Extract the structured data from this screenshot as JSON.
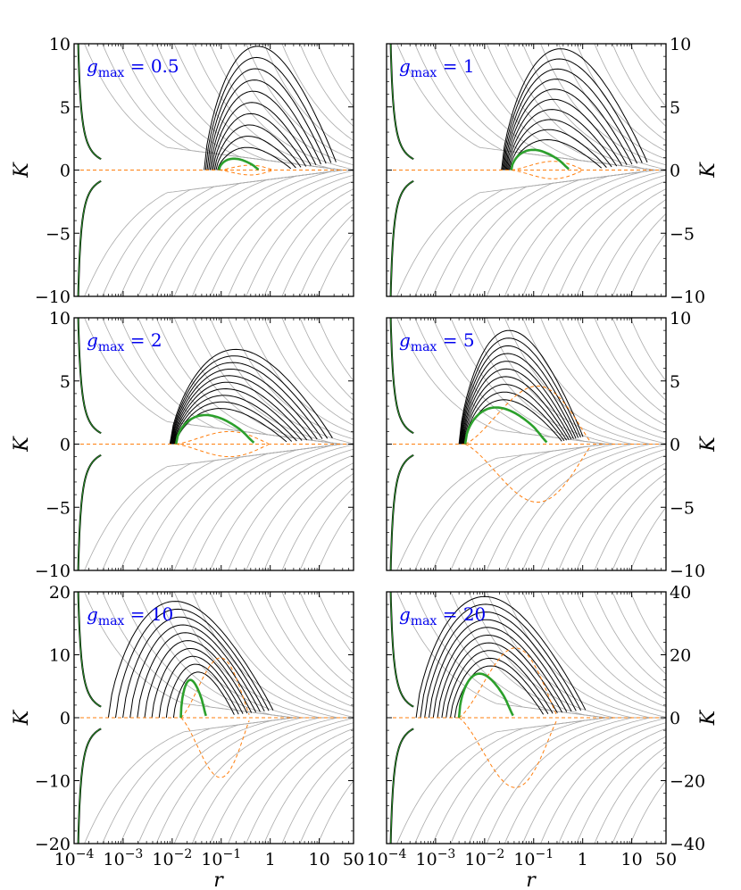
{
  "chart_data": [
    {
      "type": "line",
      "panel_label": {
        "var": "g",
        "sub": "max",
        "value": "0.5"
      },
      "xscale": "log",
      "xlim": [
        0.0001,
        50
      ],
      "x_ticks": [
        "10-4",
        "10-3",
        "10-2",
        "10-1",
        "1",
        "10",
        "50"
      ],
      "show_x_ticklabels": false,
      "ylabel": "K",
      "ylabel_side": "left",
      "ylim": [
        -10,
        10
      ],
      "y_ticks": [
        10,
        5,
        0,
        -5,
        -10
      ],
      "core": {
        "center_r": 0.6,
        "upper_K": 0.9,
        "lower_K": -0.85,
        "tip_r": 0.09
      },
      "envelope": {
        "tip_r": 0.045,
        "peak_r": 20,
        "peak_K": 9.8,
        "end_r": 30
      },
      "series": [
        {
          "style": "black solid",
          "color": "#000000"
        },
        {
          "style": "grey solid",
          "color": "#aaaaaa"
        },
        {
          "style": "green separatrix",
          "color": "#2ca02c"
        },
        {
          "style": "orange dashed",
          "color": "#ff7f0e"
        }
      ]
    },
    {
      "type": "line",
      "panel_label": {
        "var": "g",
        "sub": "max",
        "value": "1"
      },
      "xscale": "log",
      "xlim": [
        0.0001,
        50
      ],
      "x_ticks": [
        "10-4",
        "10-3",
        "10-2",
        "10-1",
        "1",
        "10",
        "50"
      ],
      "show_x_ticklabels": false,
      "ylabel": "K",
      "ylabel_side": "right",
      "ylim": [
        -10,
        10
      ],
      "y_ticks": [
        10,
        5,
        0,
        -5,
        -10
      ],
      "core": {
        "center_r": 0.55,
        "upper_K": 1.6,
        "lower_K": -1.5,
        "tip_r": 0.035
      },
      "envelope": {
        "tip_r": 0.022,
        "peak_r": 18,
        "peak_K": 9.6,
        "end_r": 30
      },
      "series": [
        {
          "style": "black solid",
          "color": "#000000"
        },
        {
          "style": "grey solid",
          "color": "#aaaaaa"
        },
        {
          "style": "green separatrix",
          "color": "#2ca02c"
        },
        {
          "style": "orange dashed",
          "color": "#ff7f0e"
        }
      ]
    },
    {
      "type": "line",
      "panel_label": {
        "var": "g",
        "sub": "max",
        "value": "2"
      },
      "xscale": "log",
      "xlim": [
        0.0001,
        50
      ],
      "x_ticks": [
        "10-4",
        "10-3",
        "10-2",
        "10-1",
        "1",
        "10",
        "50"
      ],
      "show_x_ticklabels": false,
      "ylabel": "K",
      "ylabel_side": "left",
      "ylim": [
        -10,
        10
      ],
      "y_ticks": [
        10,
        5,
        0,
        -5,
        -10
      ],
      "core": {
        "center_r": 0.5,
        "upper_K": 2.3,
        "lower_K": -2.3,
        "tip_r": 0.012
      },
      "envelope": {
        "tip_r": 0.009,
        "peak_r": 16,
        "peak_K": 7.5,
        "end_r": 28
      },
      "series": [
        {
          "style": "black solid",
          "color": "#000000"
        },
        {
          "style": "grey solid",
          "color": "#aaaaaa"
        },
        {
          "style": "green separatrix",
          "color": "#2ca02c"
        },
        {
          "style": "orange dashed",
          "color": "#ff7f0e"
        }
      ]
    },
    {
      "type": "line",
      "panel_label": {
        "var": "g",
        "sub": "max",
        "value": "5"
      },
      "xscale": "log",
      "xlim": [
        0.0001,
        50
      ],
      "x_ticks": [
        "10-4",
        "10-3",
        "10-2",
        "10-1",
        "1",
        "10",
        "50"
      ],
      "show_x_ticklabels": false,
      "ylabel": "K",
      "ylabel_side": "right",
      "ylim": [
        -10,
        10
      ],
      "y_ticks": [
        10,
        5,
        0,
        -5,
        -10
      ],
      "core": {
        "center_r": 0.2,
        "upper_K": 2.9,
        "lower_K": -2.9,
        "tip_r": 0.004
      },
      "envelope": {
        "tip_r": 0.003,
        "peak_r": 0.35,
        "peak_K": 9.0,
        "end_r": 3
      },
      "series": [
        {
          "style": "black solid",
          "color": "#000000"
        },
        {
          "style": "grey solid",
          "color": "#aaaaaa"
        },
        {
          "style": "green separatrix",
          "color": "#2ca02c"
        },
        {
          "style": "orange dashed",
          "color": "#ff7f0e"
        }
      ]
    },
    {
      "type": "line",
      "panel_label": {
        "var": "g",
        "sub": "max",
        "value": "10"
      },
      "xscale": "log",
      "xlim": [
        0.0001,
        50
      ],
      "x_ticks": [
        "10-4",
        "10-3",
        "10-2",
        "10-1",
        "1",
        "10",
        "50"
      ],
      "show_x_ticklabels": true,
      "xlabel": "r",
      "ylabel": "K",
      "ylabel_side": "left",
      "ylim": [
        -20,
        20
      ],
      "y_ticks": [
        20,
        10,
        0,
        -10,
        -20
      ],
      "core": {
        "center_r": 0.05,
        "upper_K": 6.0,
        "lower_K": -6.0,
        "tip_r": 0.015
      },
      "envelope": {
        "tip_r": 0.0005,
        "peak_r": 0.5,
        "peak_K": 18.5,
        "end_r": 3
      },
      "series": [
        {
          "style": "black solid",
          "color": "#000000"
        },
        {
          "style": "grey solid",
          "color": "#aaaaaa"
        },
        {
          "style": "green separatrix",
          "color": "#2ca02c"
        },
        {
          "style": "orange dashed",
          "color": "#ff7f0e"
        }
      ]
    },
    {
      "type": "line",
      "panel_label": {
        "var": "g",
        "sub": "max",
        "value": "20"
      },
      "xscale": "log",
      "xlim": [
        0.0001,
        50
      ],
      "x_ticks": [
        "10-4",
        "10-3",
        "10-2",
        "10-1",
        "1",
        "10",
        "50"
      ],
      "show_x_ticklabels": true,
      "xlabel": "r",
      "ylabel": "K",
      "ylabel_side": "right",
      "ylim": [
        -40,
        40
      ],
      "y_ticks": [
        40,
        20,
        0,
        -20,
        -40
      ],
      "core": {
        "center_r": 0.04,
        "upper_K": 14.0,
        "lower_K": -14.0,
        "tip_r": 0.003
      },
      "envelope": {
        "tip_r": 0.0004,
        "peak_r": 0.5,
        "peak_K": 38.5,
        "end_r": 3
      },
      "series": [
        {
          "style": "black solid",
          "color": "#000000"
        },
        {
          "style": "grey solid",
          "color": "#aaaaaa"
        },
        {
          "style": "green separatrix",
          "color": "#2ca02c"
        },
        {
          "style": "orange dashed",
          "color": "#ff7f0e"
        }
      ]
    }
  ]
}
